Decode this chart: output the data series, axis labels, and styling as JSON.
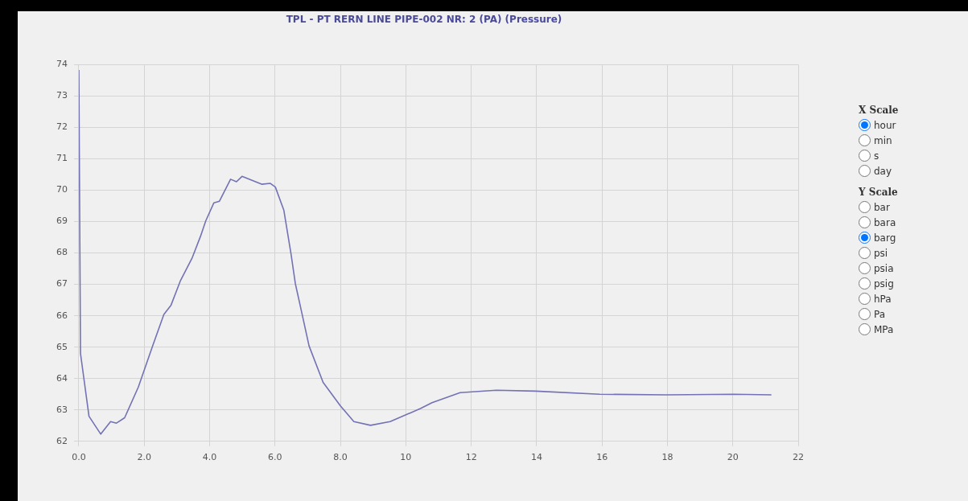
{
  "chart_data": {
    "type": "line",
    "title": "TPL - PT RERN LINE PIPE-002 NR: 2 (PA) (Pressure)",
    "x": [
      0,
      0.05,
      0.31,
      0.67,
      0.97,
      1.15,
      1.4,
      1.82,
      2.26,
      2.6,
      2.82,
      3.1,
      3.46,
      3.72,
      3.88,
      4.13,
      4.3,
      4.64,
      4.82,
      4.99,
      5.59,
      5.85,
      6.01,
      6.27,
      6.49,
      6.62,
      6.83,
      7.04,
      7.47,
      8.0,
      8.41,
      8.92,
      9.52,
      10.46,
      10.8,
      11.66,
      12.77,
      13.97,
      15.93,
      17.97,
      20.03,
      21.18
    ],
    "series": [
      {
        "color": "#7272b4",
        "values": [
          73.83,
          64.8,
          62.8,
          62.23,
          62.63,
          62.58,
          62.75,
          63.73,
          65.05,
          66.04,
          66.34,
          67.1,
          67.83,
          68.53,
          69.02,
          69.6,
          69.65,
          70.35,
          70.27,
          70.44,
          70.19,
          70.22,
          70.1,
          69.36,
          67.96,
          67.03,
          66.04,
          65.04,
          63.88,
          63.13,
          62.63,
          62.51,
          62.63,
          63.05,
          63.23,
          63.55,
          63.63,
          63.6,
          63.5,
          63.48,
          63.5,
          63.48
        ]
      }
    ],
    "xlim": [
      0,
      22
    ],
    "ylim": [
      62,
      74
    ],
    "xticks": [
      {
        "value": 0,
        "label": "0.0"
      },
      {
        "value": 2,
        "label": "2.0"
      },
      {
        "value": 4,
        "label": "4.0"
      },
      {
        "value": 6,
        "label": "6.0"
      },
      {
        "value": 8,
        "label": "8.0"
      },
      10,
      12,
      14,
      16,
      18,
      20,
      22
    ],
    "yticks": [
      62,
      63,
      64,
      65,
      66,
      67,
      68,
      69,
      70,
      71,
      72,
      73,
      74
    ],
    "grid": true,
    "legend": false,
    "marker": "none",
    "line_style": "solid",
    "annotations": [
      "X Scale",
      "hour",
      "min",
      "s",
      "day",
      "Y Scale",
      "bar",
      "bara",
      "barg",
      "psi",
      "psia",
      "psig",
      "hPa",
      "Pa",
      "MPa"
    ]
  }
}
